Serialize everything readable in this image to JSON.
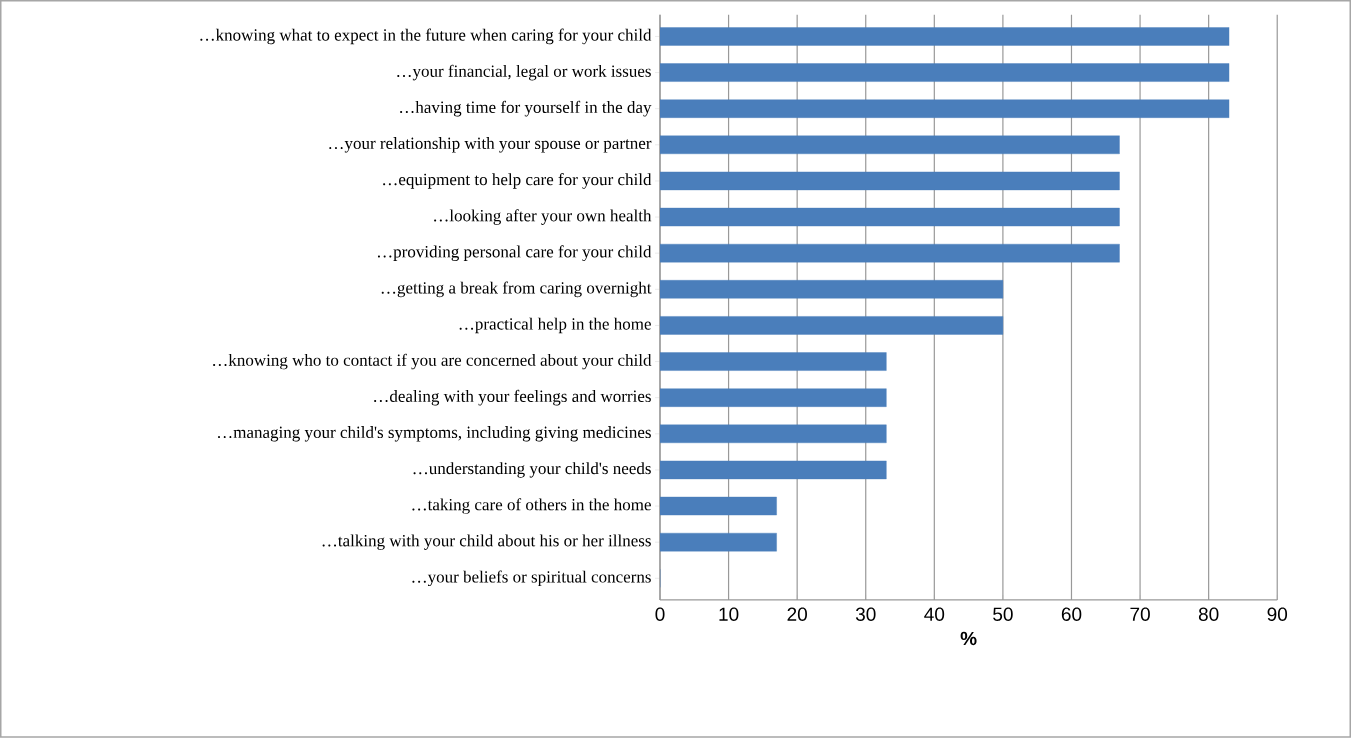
{
  "chart_data": {
    "type": "bar",
    "orientation": "horizontal",
    "xlabel": "%",
    "categories": [
      "…knowing what to expect in the future when caring for your child",
      "…your financial, legal or work issues",
      "…having time for yourself in the day",
      "…your relationship with your spouse or partner",
      "…equipment to help care for your child",
      "…looking after your own health",
      "…providing personal care for your child",
      "…getting a break from caring overnight",
      "…practical help in the home",
      "…knowing who to contact if you are concerned about your child",
      "…dealing with your feelings and worries",
      "…managing your child's symptoms, including giving medicines",
      "…understanding your child's needs",
      "…taking care of others in the home",
      "…talking with your child about his or her illness",
      "…your beliefs or spiritual concerns"
    ],
    "values": [
      83,
      83,
      83,
      67,
      67,
      67,
      67,
      50,
      50,
      33,
      33,
      33,
      33,
      17,
      17,
      0
    ],
    "color": "#4a7ebb",
    "xlim": [
      0,
      90
    ],
    "xticks": [
      0,
      10,
      20,
      30,
      40,
      50,
      60,
      70,
      80,
      90
    ],
    "grid": "x"
  }
}
